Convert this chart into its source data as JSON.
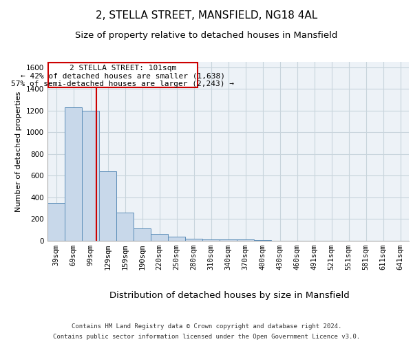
{
  "title1": "2, STELLA STREET, MANSFIELD, NG18 4AL",
  "title2": "Size of property relative to detached houses in Mansfield",
  "xlabel": "Distribution of detached houses by size in Mansfield",
  "ylabel": "Number of detached properties",
  "footer1": "Contains HM Land Registry data © Crown copyright and database right 2024.",
  "footer2": "Contains public sector information licensed under the Open Government Licence v3.0.",
  "bar_color": "#c8d8ea",
  "bar_edge_color": "#5b8db8",
  "annotation_box_color": "#cc0000",
  "vline_color": "#cc0000",
  "grid_color": "#c8d4dc",
  "background_color": "#edf2f7",
  "annotation_text1": "2 STELLA STREET: 101sqm",
  "annotation_text2": "← 42% of detached houses are smaller (1,638)",
  "annotation_text3": "57% of semi-detached houses are larger (2,243) →",
  "categories": [
    "39sqm",
    "69sqm",
    "99sqm",
    "129sqm",
    "159sqm",
    "190sqm",
    "220sqm",
    "250sqm",
    "280sqm",
    "310sqm",
    "340sqm",
    "370sqm",
    "400sqm",
    "430sqm",
    "460sqm",
    "491sqm",
    "521sqm",
    "551sqm",
    "581sqm",
    "611sqm",
    "641sqm"
  ],
  "values": [
    350,
    1230,
    1200,
    640,
    260,
    115,
    65,
    35,
    20,
    15,
    15,
    10,
    5,
    3,
    2,
    1,
    1,
    0.5,
    0.5,
    0.5,
    0.5
  ],
  "ylim": [
    0,
    1650
  ],
  "yticks": [
    0,
    200,
    400,
    600,
    800,
    1000,
    1200,
    1400,
    1600
  ],
  "vline_x": 2.35,
  "bar_width": 1.0,
  "title1_fontsize": 11,
  "title2_fontsize": 9.5,
  "xlabel_fontsize": 9.5,
  "ylabel_fontsize": 8,
  "tick_fontsize": 7.5,
  "annotation_fontsize": 8,
  "footer_fontsize": 6.5
}
